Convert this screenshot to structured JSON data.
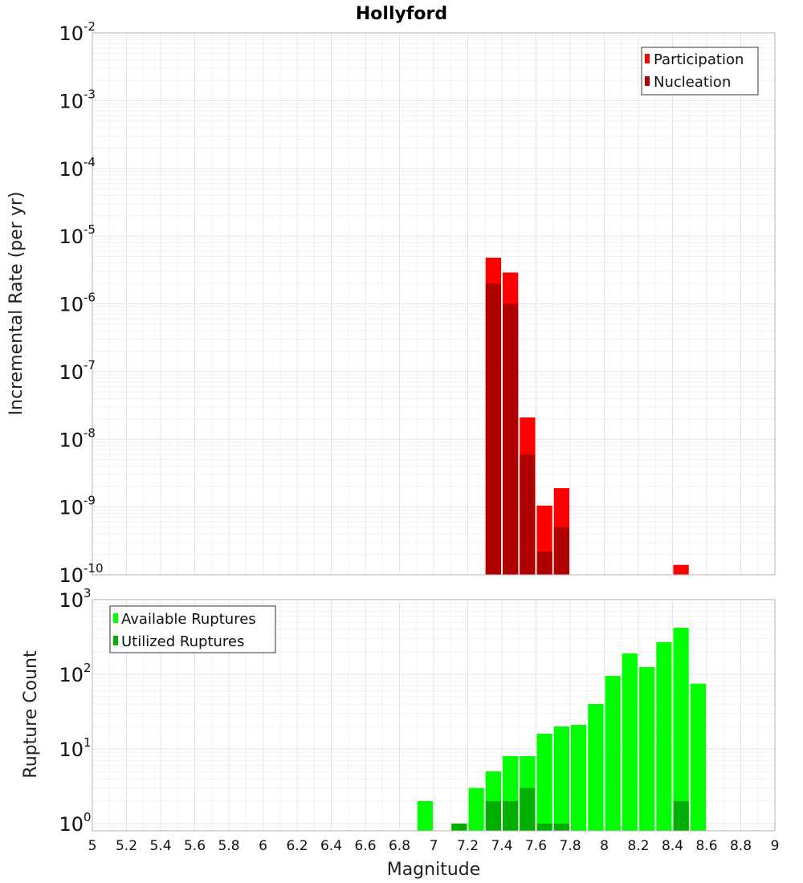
{
  "chart_data": [
    {
      "type": "bar",
      "title": "Hollyford",
      "xlabel": "",
      "ylabel": "Incremental Rate (per yr)",
      "yscale": "log",
      "ylim": [
        1e-10,
        0.01
      ],
      "xlim": [
        5,
        9
      ],
      "grid": true,
      "legend_position": "top-right",
      "bin_width": 0.1,
      "series": [
        {
          "name": "Participation",
          "color": "#ff0000",
          "x": [
            7.35,
            7.45,
            7.55,
            7.65,
            7.75,
            8.45
          ],
          "values": [
            4.8e-06,
            2.9e-06,
            2.1e-08,
            1.05e-09,
            1.9e-09,
            1.4e-10
          ]
        },
        {
          "name": "Nucleation",
          "color": "#b00000",
          "x": [
            7.35,
            7.45,
            7.55,
            7.65,
            7.75
          ],
          "values": [
            2e-06,
            1e-06,
            6e-09,
            2.2e-10,
            5e-10
          ]
        }
      ],
      "ytick_labels": [
        {
          "base": "10",
          "exp": "-10",
          "value": 1e-10
        },
        {
          "base": "10",
          "exp": "-9",
          "value": 1e-09
        },
        {
          "base": "10",
          "exp": "-8",
          "value": 1e-08
        },
        {
          "base": "10",
          "exp": "-7",
          "value": 1e-07
        },
        {
          "base": "10",
          "exp": "-6",
          "value": 1e-06
        },
        {
          "base": "10",
          "exp": "-5",
          "value": 1e-05
        },
        {
          "base": "10",
          "exp": "-4",
          "value": 0.0001
        },
        {
          "base": "10",
          "exp": "-3",
          "value": 0.001
        },
        {
          "base": "10",
          "exp": "-2",
          "value": 0.01
        }
      ]
    },
    {
      "type": "bar",
      "title": "",
      "xlabel": "Magnitude",
      "ylabel": "Rupture Count",
      "yscale": "log",
      "ylim": [
        0.8,
        1000
      ],
      "xlim": [
        5,
        9
      ],
      "grid": true,
      "legend_position": "top-left",
      "bin_width": 0.1,
      "series": [
        {
          "name": "Available Ruptures",
          "color": "#00ff00",
          "x": [
            6.95,
            7.15,
            7.25,
            7.35,
            7.45,
            7.55,
            7.65,
            7.75,
            7.85,
            7.95,
            8.05,
            8.15,
            8.25,
            8.35,
            8.45,
            8.55
          ],
          "values": [
            2,
            1,
            3,
            5,
            8,
            8,
            16,
            20,
            21,
            40,
            95,
            190,
            125,
            270,
            420,
            75
          ]
        },
        {
          "name": "Utilized Ruptures",
          "color": "#00b000",
          "x": [
            7.15,
            7.35,
            7.45,
            7.55,
            7.65,
            7.75,
            8.45
          ],
          "values": [
            1,
            2,
            2,
            3,
            1,
            1,
            2
          ]
        }
      ],
      "ytick_labels": [
        {
          "base": "10",
          "exp": "0",
          "value": 1
        },
        {
          "base": "10",
          "exp": "1",
          "value": 10
        },
        {
          "base": "10",
          "exp": "2",
          "value": 100
        },
        {
          "base": "10",
          "exp": "3",
          "value": 1000
        }
      ],
      "xtick_labels": [
        "5",
        "5.2",
        "5.4",
        "5.6",
        "5.8",
        "6",
        "6.2",
        "6.4",
        "6.6",
        "6.8",
        "7",
        "7.2",
        "7.4",
        "7.6",
        "7.8",
        "8",
        "8.2",
        "8.4",
        "8.6",
        "8.8",
        "9"
      ]
    }
  ]
}
